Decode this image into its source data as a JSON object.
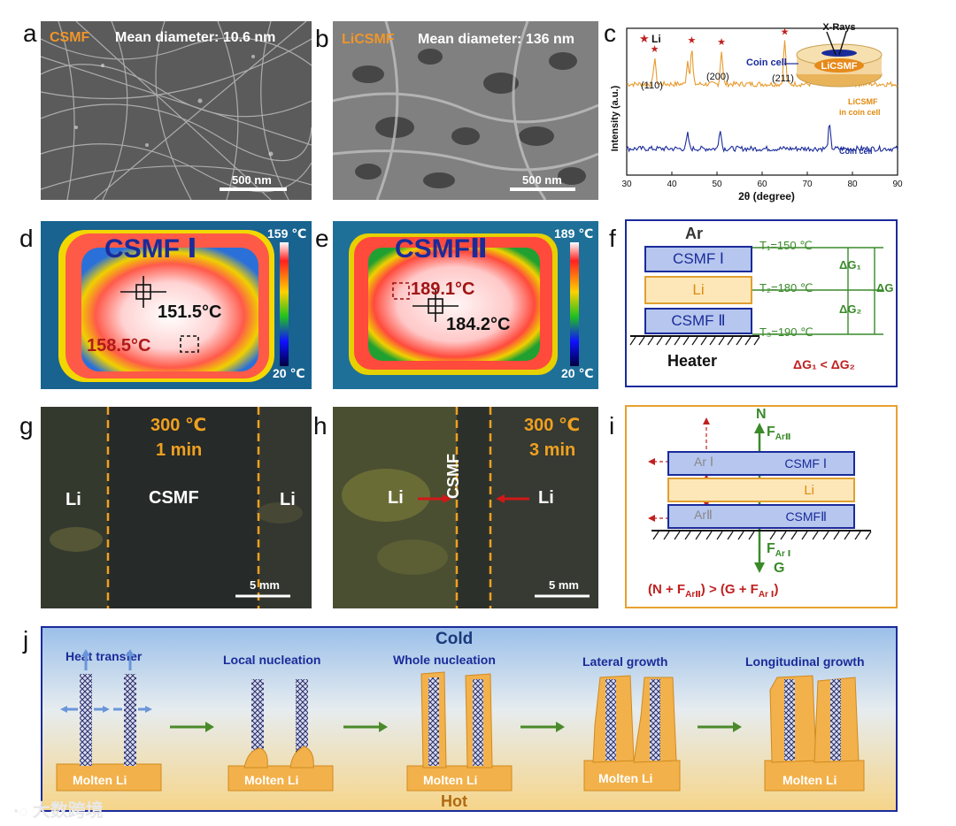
{
  "panel_letters": [
    "a",
    "b",
    "c",
    "d",
    "e",
    "f",
    "g",
    "h",
    "i",
    "j"
  ],
  "a": {
    "material": "CSMF",
    "caption": "Mean diameter: 10.6 nm",
    "scale": "500 nm"
  },
  "b": {
    "material": "LiCSMF",
    "caption": "Mean diameter: 136 nm",
    "scale": "500 nm"
  },
  "c": {
    "legend": "Li",
    "inset": {
      "xrays": "X-Rays",
      "coin_cell": "Coin cell",
      "sample": "LiCSMF"
    },
    "series_labels": {
      "orange": "LiCSMF\nin coin cell",
      "blue": "Coin cell"
    },
    "peak_labels": [
      "(110)",
      "(200)",
      "(211)"
    ],
    "chart_data": {
      "type": "line",
      "title": "",
      "xlabel": "2θ (degree)",
      "ylabel": "Intensity (a.u.)",
      "xlim": [
        30,
        90
      ],
      "xticks": [
        30,
        40,
        50,
        60,
        70,
        80,
        90
      ],
      "series": [
        {
          "name": "LiCSMF in coin cell",
          "color": "#e89a2c",
          "baseline": 0.62,
          "peaks": [
            [
              36.2,
              0.18
            ],
            [
              43.5,
              0.16
            ],
            [
              44.4,
              0.24
            ],
            [
              51.0,
              0.23
            ],
            [
              65.0,
              0.3
            ],
            [
              74.9,
              0.14
            ]
          ]
        },
        {
          "name": "Coin cell",
          "color": "#1a2b9a",
          "baseline": 0.18,
          "peaks": [
            [
              43.5,
              0.1
            ],
            [
              50.7,
              0.14
            ],
            [
              74.9,
              0.16
            ]
          ]
        }
      ],
      "li_peaks": [
        36.2,
        44.4,
        51.0,
        65.0
      ]
    }
  },
  "d": {
    "title": "CSMF Ⅰ",
    "t_max": "159 ℃",
    "t_min": "20 ℃",
    "reading_1": "151.5°C",
    "reading_2": "158.5°C"
  },
  "e": {
    "title": "CSMFⅡ",
    "t_max": "189 ℃",
    "t_min": "20 ℃",
    "reading_1": "189.1°C",
    "reading_2": "184.2°C"
  },
  "f": {
    "ar": "Ar",
    "layer_top": "CSMF Ⅰ",
    "layer_mid": "Li",
    "layer_bot": "CSMF Ⅱ",
    "heater": "Heater",
    "t1": "T₁=150 ℃",
    "t2": "T₂=180 ℃",
    "t3": "T₃=190 ℃",
    "dg1": "ΔG₁",
    "dg2": "ΔG₂",
    "dg": "ΔG",
    "relation": "ΔG₁ < ΔG₂"
  },
  "g": {
    "temp": "300 ℃",
    "time": "1 min",
    "left": "Li",
    "center": "CSMF",
    "right": "Li",
    "scale": "5 mm"
  },
  "h": {
    "temp": "300 ℃",
    "time": "3 min",
    "left": "Li",
    "center": "CSMF",
    "right": "Li",
    "scale": "5 mm"
  },
  "i": {
    "n": "N",
    "f_ar2_top": "F",
    "f_ar2_top_sub": "ArⅡ",
    "ar1": "Ar Ⅰ",
    "ar2": "ArⅡ",
    "layer_top": "CSMF Ⅰ",
    "layer_mid": "Li",
    "layer_bot": "CSMFⅡ",
    "f_ar1": "F",
    "f_ar1_sub": "Ar Ⅰ",
    "g": "G",
    "relation": "(N + F",
    "relation_sub1": "ArⅡ",
    "relation_mid": ") > (G + F",
    "relation_sub2": "Ar Ⅰ",
    "relation_end": ")"
  },
  "j": {
    "cold": "Cold",
    "hot": "Hot",
    "stages": [
      "Heat transfer",
      "Local nucleation",
      "Whole nucleation",
      "Lateral growth",
      "Longitudinal growth"
    ],
    "molten": "Molten Li"
  },
  "watermark": "大数跨境"
}
